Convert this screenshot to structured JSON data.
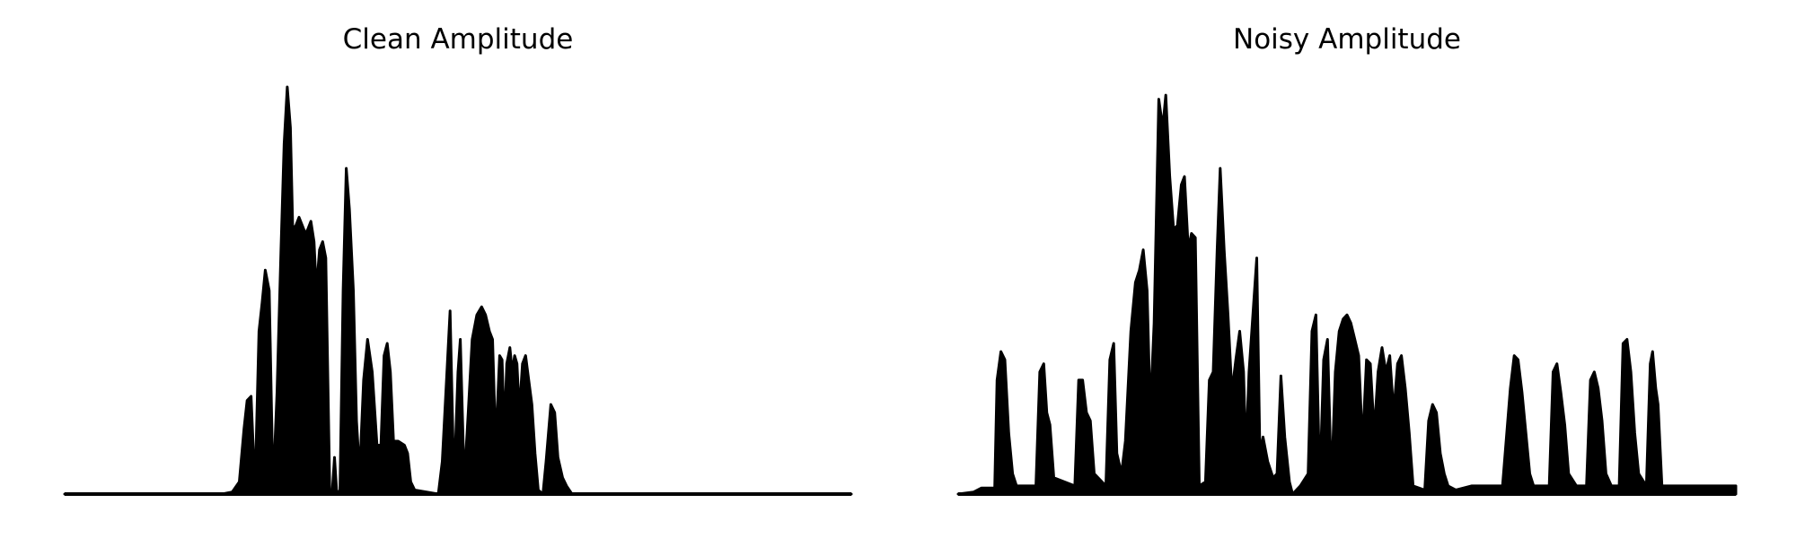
{
  "figure": {
    "background": "#ffffff",
    "ink_color": "#000000"
  },
  "chart_data": [
    {
      "type": "area",
      "title": "Clean Amplitude",
      "xlabel": "",
      "ylabel": "",
      "axes_visible": false,
      "grid": false,
      "x_range": [
        0,
        1
      ],
      "ylim": [
        0,
        1
      ],
      "envelope": [
        [
          0.0,
          0.0
        ],
        [
          0.2,
          0.0
        ],
        [
          0.213,
          0.005
        ],
        [
          0.222,
          0.03
        ],
        [
          0.228,
          0.16
        ],
        [
          0.232,
          0.23
        ],
        [
          0.237,
          0.24
        ],
        [
          0.242,
          0.01
        ],
        [
          0.247,
          0.4
        ],
        [
          0.251,
          0.47
        ],
        [
          0.255,
          0.55
        ],
        [
          0.26,
          0.5
        ],
        [
          0.265,
          0.01
        ],
        [
          0.27,
          0.25
        ],
        [
          0.275,
          0.6
        ],
        [
          0.279,
          0.86
        ],
        [
          0.283,
          1.0
        ],
        [
          0.287,
          0.9
        ],
        [
          0.29,
          0.65
        ],
        [
          0.294,
          0.66
        ],
        [
          0.298,
          0.68
        ],
        [
          0.302,
          0.66
        ],
        [
          0.306,
          0.64
        ],
        [
          0.309,
          0.65
        ],
        [
          0.313,
          0.67
        ],
        [
          0.317,
          0.62
        ],
        [
          0.32,
          0.5
        ],
        [
          0.324,
          0.6
        ],
        [
          0.328,
          0.62
        ],
        [
          0.332,
          0.58
        ],
        [
          0.337,
          0.01
        ],
        [
          0.34,
          0.0
        ],
        [
          0.343,
          0.09
        ],
        [
          0.346,
          0.0
        ],
        [
          0.35,
          0.01
        ],
        [
          0.354,
          0.5
        ],
        [
          0.358,
          0.8
        ],
        [
          0.362,
          0.7
        ],
        [
          0.367,
          0.5
        ],
        [
          0.371,
          0.18
        ],
        [
          0.375,
          0.05
        ],
        [
          0.38,
          0.28
        ],
        [
          0.385,
          0.38
        ],
        [
          0.391,
          0.3
        ],
        [
          0.397,
          0.12
        ],
        [
          0.402,
          0.12
        ],
        [
          0.406,
          0.34
        ],
        [
          0.41,
          0.37
        ],
        [
          0.414,
          0.3
        ],
        [
          0.418,
          0.13
        ],
        [
          0.424,
          0.13
        ],
        [
          0.432,
          0.12
        ],
        [
          0.436,
          0.1
        ],
        [
          0.44,
          0.03
        ],
        [
          0.445,
          0.01
        ],
        [
          0.475,
          0.0
        ],
        [
          0.48,
          0.08
        ],
        [
          0.486,
          0.3
        ],
        [
          0.49,
          0.45
        ],
        [
          0.495,
          0.02
        ],
        [
          0.5,
          0.3
        ],
        [
          0.503,
          0.38
        ],
        [
          0.508,
          0.03
        ],
        [
          0.513,
          0.2
        ],
        [
          0.518,
          0.38
        ],
        [
          0.524,
          0.44
        ],
        [
          0.53,
          0.46
        ],
        [
          0.535,
          0.44
        ],
        [
          0.54,
          0.4
        ],
        [
          0.544,
          0.38
        ],
        [
          0.548,
          0.12
        ],
        [
          0.553,
          0.34
        ],
        [
          0.556,
          0.33
        ],
        [
          0.559,
          0.15
        ],
        [
          0.562,
          0.32
        ],
        [
          0.566,
          0.36
        ],
        [
          0.569,
          0.3
        ],
        [
          0.572,
          0.34
        ],
        [
          0.575,
          0.32
        ],
        [
          0.578,
          0.2
        ],
        [
          0.582,
          0.32
        ],
        [
          0.586,
          0.34
        ],
        [
          0.59,
          0.28
        ],
        [
          0.594,
          0.22
        ],
        [
          0.598,
          0.1
        ],
        [
          0.602,
          0.01
        ],
        [
          0.608,
          0.0
        ],
        [
          0.612,
          0.08
        ],
        [
          0.618,
          0.22
        ],
        [
          0.623,
          0.2
        ],
        [
          0.627,
          0.09
        ],
        [
          0.633,
          0.04
        ],
        [
          0.638,
          0.02
        ],
        [
          0.645,
          0.0
        ],
        [
          0.76,
          0.0
        ],
        [
          1.0,
          0.0
        ]
      ]
    },
    {
      "type": "area",
      "title": "Noisy Amplitude",
      "xlabel": "",
      "ylabel": "",
      "axes_visible": false,
      "grid": false,
      "x_range": [
        0,
        1
      ],
      "ylim": [
        0,
        1
      ],
      "envelope": [
        [
          0.0,
          0.0
        ],
        [
          0.02,
          0.005
        ],
        [
          0.03,
          0.015
        ],
        [
          0.047,
          0.015
        ],
        [
          0.05,
          0.28
        ],
        [
          0.055,
          0.35
        ],
        [
          0.06,
          0.33
        ],
        [
          0.065,
          0.15
        ],
        [
          0.07,
          0.05
        ],
        [
          0.075,
          0.02
        ],
        [
          0.1,
          0.02
        ],
        [
          0.105,
          0.3
        ],
        [
          0.11,
          0.32
        ],
        [
          0.114,
          0.2
        ],
        [
          0.118,
          0.17
        ],
        [
          0.123,
          0.04
        ],
        [
          0.15,
          0.02
        ],
        [
          0.155,
          0.28
        ],
        [
          0.16,
          0.28
        ],
        [
          0.165,
          0.2
        ],
        [
          0.17,
          0.18
        ],
        [
          0.175,
          0.05
        ],
        [
          0.19,
          0.02
        ],
        [
          0.195,
          0.33
        ],
        [
          0.2,
          0.37
        ],
        [
          0.204,
          0.1
        ],
        [
          0.21,
          0.05
        ],
        [
          0.215,
          0.13
        ],
        [
          0.222,
          0.4
        ],
        [
          0.228,
          0.52
        ],
        [
          0.233,
          0.55
        ],
        [
          0.238,
          0.6
        ],
        [
          0.243,
          0.5
        ],
        [
          0.247,
          0.2
        ],
        [
          0.252,
          0.42
        ],
        [
          0.258,
          0.97
        ],
        [
          0.263,
          0.9
        ],
        [
          0.267,
          0.98
        ],
        [
          0.272,
          0.78
        ],
        [
          0.277,
          0.65
        ],
        [
          0.282,
          0.66
        ],
        [
          0.287,
          0.76
        ],
        [
          0.291,
          0.78
        ],
        [
          0.296,
          0.6
        ],
        [
          0.3,
          0.64
        ],
        [
          0.305,
          0.63
        ],
        [
          0.31,
          0.02
        ],
        [
          0.318,
          0.03
        ],
        [
          0.323,
          0.28
        ],
        [
          0.328,
          0.3
        ],
        [
          0.333,
          0.6
        ],
        [
          0.337,
          0.8
        ],
        [
          0.342,
          0.6
        ],
        [
          0.347,
          0.44
        ],
        [
          0.352,
          0.25
        ],
        [
          0.357,
          0.33
        ],
        [
          0.362,
          0.4
        ],
        [
          0.367,
          0.3
        ],
        [
          0.37,
          0.1
        ],
        [
          0.374,
          0.3
        ],
        [
          0.38,
          0.47
        ],
        [
          0.384,
          0.58
        ],
        [
          0.388,
          0.1
        ],
        [
          0.392,
          0.14
        ],
        [
          0.398,
          0.08
        ],
        [
          0.405,
          0.04
        ],
        [
          0.41,
          0.05
        ],
        [
          0.415,
          0.29
        ],
        [
          0.42,
          0.14
        ],
        [
          0.426,
          0.03
        ],
        [
          0.43,
          0.0
        ],
        [
          0.44,
          0.02
        ],
        [
          0.45,
          0.05
        ],
        [
          0.455,
          0.4
        ],
        [
          0.46,
          0.44
        ],
        [
          0.465,
          0.02
        ],
        [
          0.47,
          0.33
        ],
        [
          0.475,
          0.38
        ],
        [
          0.48,
          0.02
        ],
        [
          0.485,
          0.3
        ],
        [
          0.49,
          0.4
        ],
        [
          0.495,
          0.43
        ],
        [
          0.5,
          0.44
        ],
        [
          0.505,
          0.42
        ],
        [
          0.51,
          0.38
        ],
        [
          0.515,
          0.34
        ],
        [
          0.52,
          0.12
        ],
        [
          0.525,
          0.33
        ],
        [
          0.53,
          0.32
        ],
        [
          0.535,
          0.15
        ],
        [
          0.54,
          0.3
        ],
        [
          0.545,
          0.36
        ],
        [
          0.55,
          0.3
        ],
        [
          0.555,
          0.34
        ],
        [
          0.56,
          0.2
        ],
        [
          0.565,
          0.32
        ],
        [
          0.57,
          0.34
        ],
        [
          0.575,
          0.26
        ],
        [
          0.58,
          0.15
        ],
        [
          0.585,
          0.02
        ],
        [
          0.6,
          0.01
        ],
        [
          0.605,
          0.18
        ],
        [
          0.61,
          0.22
        ],
        [
          0.615,
          0.2
        ],
        [
          0.62,
          0.1
        ],
        [
          0.625,
          0.05
        ],
        [
          0.63,
          0.02
        ],
        [
          0.64,
          0.01
        ],
        [
          0.66,
          0.02
        ],
        [
          0.7,
          0.02
        ],
        [
          0.71,
          0.26
        ],
        [
          0.715,
          0.34
        ],
        [
          0.72,
          0.33
        ],
        [
          0.725,
          0.25
        ],
        [
          0.73,
          0.15
        ],
        [
          0.735,
          0.05
        ],
        [
          0.74,
          0.02
        ],
        [
          0.76,
          0.02
        ],
        [
          0.765,
          0.3
        ],
        [
          0.77,
          0.32
        ],
        [
          0.775,
          0.25
        ],
        [
          0.78,
          0.17
        ],
        [
          0.785,
          0.05
        ],
        [
          0.795,
          0.02
        ],
        [
          0.808,
          0.02
        ],
        [
          0.813,
          0.28
        ],
        [
          0.818,
          0.3
        ],
        [
          0.823,
          0.26
        ],
        [
          0.828,
          0.18
        ],
        [
          0.833,
          0.05
        ],
        [
          0.84,
          0.02
        ],
        [
          0.85,
          0.02
        ],
        [
          0.855,
          0.37
        ],
        [
          0.86,
          0.38
        ],
        [
          0.865,
          0.3
        ],
        [
          0.87,
          0.15
        ],
        [
          0.875,
          0.05
        ],
        [
          0.885,
          0.02
        ],
        [
          0.89,
          0.32
        ],
        [
          0.893,
          0.35
        ],
        [
          0.897,
          0.26
        ],
        [
          0.9,
          0.22
        ],
        [
          0.905,
          0.02
        ],
        [
          1.0,
          0.02
        ]
      ]
    }
  ]
}
